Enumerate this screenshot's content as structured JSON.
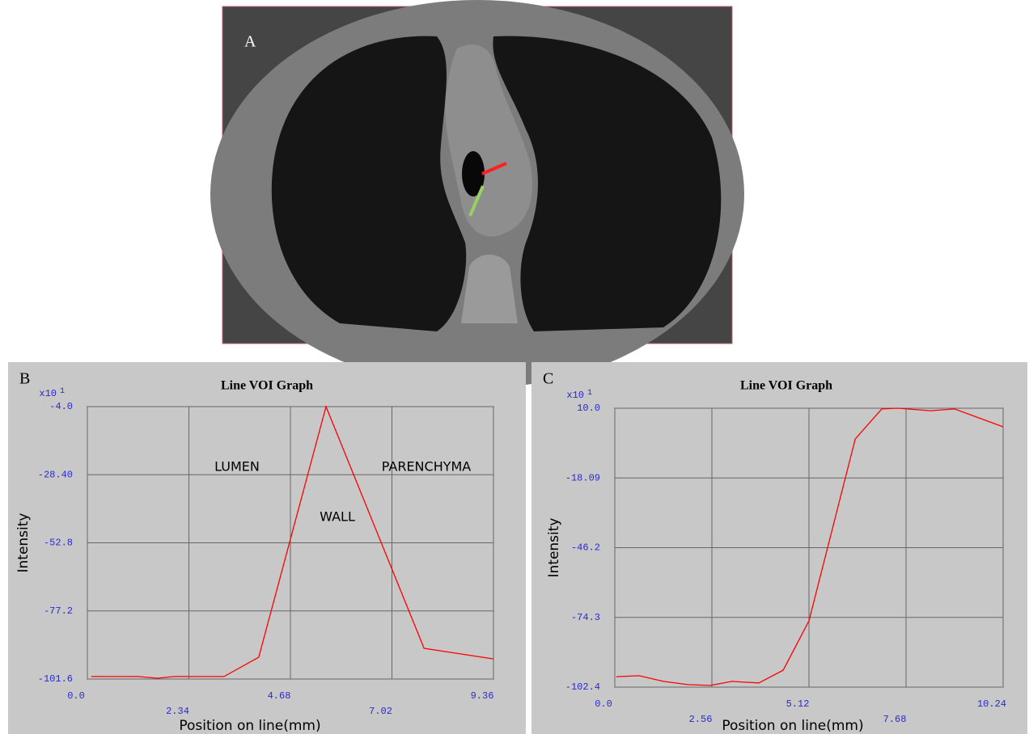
{
  "image_panel": {
    "label": "A"
  },
  "chart_data": [
    {
      "type": "line",
      "panel_label": "B",
      "title": "Line VOI Graph",
      "y_multiplier": "x10",
      "y_multiplier_exponent": 1,
      "x_label": "Position on line(mm)",
      "y_label": "Intensity",
      "annotations": [
        "LUMEN",
        "PARENCHYMA",
        "WALL"
      ],
      "x": [
        0.09,
        1.16,
        1.62,
        2.0,
        3.15,
        3.95,
        5.5,
        7.76,
        9.36
      ],
      "values": [
        -100.7,
        -100.7,
        -101.3,
        -100.7,
        -100.7,
        -93.8,
        -4.0,
        -90.6,
        -94.4
      ],
      "color": "#ff0000",
      "xlim": [
        0,
        9.36
      ],
      "ylim": [
        -101.6,
        -4.0
      ],
      "xticks": [
        {
          "value": 0,
          "label": "0.0"
        },
        2.34,
        4.68,
        7.02,
        9.36
      ],
      "yticks": [
        {
          "value": -4,
          "label": "-4.0"
        },
        {
          "value": -28.4,
          "label": "-28.40"
        },
        -52.8,
        -77.2,
        -101.6
      ],
      "grid": true
    },
    {
      "type": "line",
      "panel_label": "C",
      "title": "Line VOI Graph",
      "y_multiplier": "x10",
      "y_multiplier_exponent": 1,
      "x_label": "Position on line(mm)",
      "y_label": "Intensity",
      "annotations": [],
      "x": [
        0.04,
        0.64,
        1.28,
        1.92,
        2.52,
        3.09,
        3.41,
        3.8,
        4.44,
        5.12,
        6.34,
        7.04,
        7.47,
        8.32,
        8.96,
        10.24
      ],
      "values": [
        -98.2,
        -97.8,
        -100.1,
        -101.4,
        -101.7,
        -100.1,
        -100.4,
        -100.7,
        -95.6,
        -75.7,
        -2.4,
        9.7,
        10.0,
        9.0,
        9.7,
        2.5
      ],
      "color": "#ff0000",
      "xlim": [
        0,
        10.24
      ],
      "ylim": [
        -102.4,
        10.0
      ],
      "xticks": [
        {
          "value": 0,
          "label": "0.0"
        },
        2.56,
        5.12,
        7.68,
        10.24
      ],
      "yticks": [
        {
          "value": 10,
          "label": "10.0"
        },
        -18.09,
        -46.2,
        -74.3,
        -102.4
      ],
      "grid": true
    }
  ]
}
